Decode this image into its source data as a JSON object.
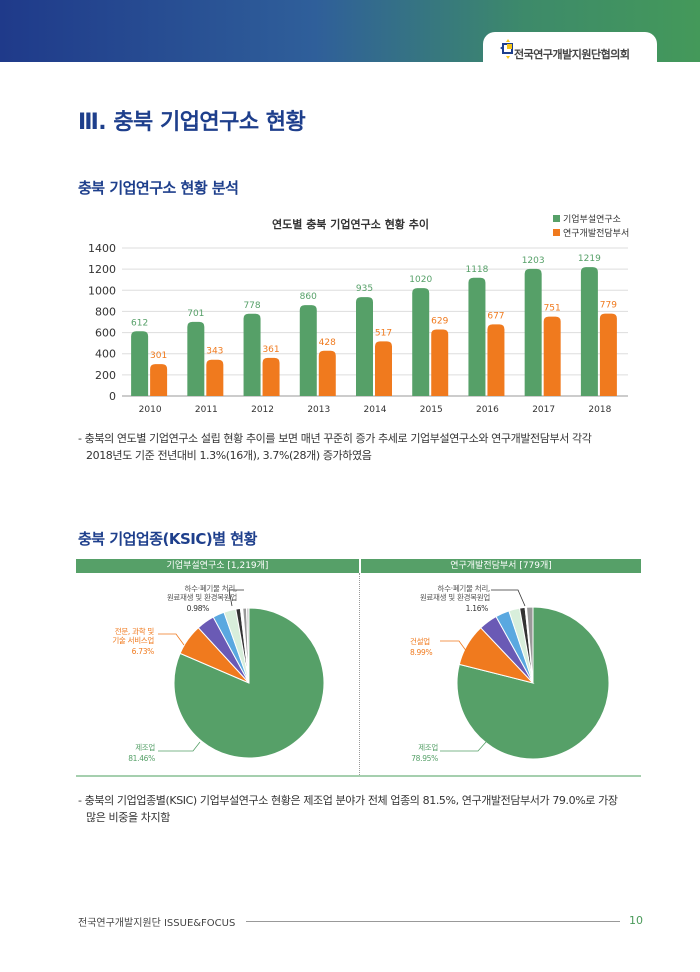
{
  "header": {
    "org_name": "전국연구개발지원단협의회",
    "logo_icon": "association-logo"
  },
  "page_title": "Ⅲ. 충북 기업연구소 현황",
  "section1": {
    "title": "충북 기업연구소 현황 분석",
    "note": "- 충북의 연도별 기업연구소 설립 현황 추이를 보면 매년 꾸준히 증가 추세로 기업부설연구소와 연구개발전담부서 각각",
    "note2": "2018년도 기준 전년대비 1.3%(16개), 3.7%(28개) 증가하였음"
  },
  "section2": {
    "title": "충북 기업업종(KSIC)별 현황",
    "note": "- 충북의 기업업종별(KSIC) 기업부설연구소 현황은 제조업 분야가 전체 업종의 81.5%, 연구개발전담부서가 79.0%로 가장",
    "note2": "많은 비중을 차지함"
  },
  "chart_data": [
    {
      "type": "bar",
      "title": "연도별 충북 기업연구소 현황 추이",
      "categories": [
        "2010",
        "2011",
        "2012",
        "2013",
        "2014",
        "2015",
        "2016",
        "2017",
        "2018"
      ],
      "series": [
        {
          "name": "기업부설연구소",
          "color": "#56a068",
          "values": [
            612,
            701,
            778,
            860,
            935,
            1020,
            1118,
            1203,
            1219
          ]
        },
        {
          "name": "연구개발전담부서",
          "color": "#f07a1e",
          "values": [
            301,
            343,
            361,
            428,
            517,
            629,
            677,
            751,
            779
          ]
        }
      ],
      "ylim": [
        0,
        1400
      ],
      "yticks": [
        "0",
        "200",
        "400",
        "600",
        "800",
        "1000",
        "1200",
        "1400"
      ],
      "grid": true,
      "legend": "top-right"
    },
    {
      "type": "pie",
      "title": "기업부설연구소 [1,219개]",
      "slices": [
        {
          "label": "제조업",
          "value": 81.46,
          "color": "#56a068"
        },
        {
          "label": "전문, 과학 및 기술 서비스업",
          "value": 6.73,
          "color": "#f07a1e"
        },
        {
          "value": 3.9,
          "color": "#6a5ab5"
        },
        {
          "value": 2.5,
          "color": "#5aa8e0"
        },
        {
          "value": 2.6,
          "color": "#d8eedb"
        },
        {
          "label": "하수·폐기물 처리, 원료재생 및 환경복원업",
          "value": 0.98,
          "color": "#333333"
        },
        {
          "value": 0.5,
          "color": "#ffffff"
        },
        {
          "value": 0.8,
          "color": "#999999"
        },
        {
          "value": 0.53,
          "color": "#cccccc"
        }
      ],
      "labels": {
        "manufacturing": "제조업",
        "manufacturing_pct": "81.46%",
        "service_1": "전문, 과학 및",
        "service_2": "기술 서비스업",
        "service_pct": "6.73%",
        "waste_1": "하수·폐기물 처리,",
        "waste_2": "원료재생 및 환경복원업",
        "waste_pct": "0.98%"
      }
    },
    {
      "type": "pie",
      "title": "연구개발전담부서 [779개]",
      "slices": [
        {
          "label": "제조업",
          "value": 78.95,
          "color": "#56a068"
        },
        {
          "label": "건설업",
          "value": 8.99,
          "color": "#f07a1e"
        },
        {
          "value": 3.98,
          "color": "#6a5ab5"
        },
        {
          "value": 2.95,
          "color": "#5aa8e0"
        },
        {
          "value": 2.31,
          "color": "#d8eedb"
        },
        {
          "label": "하수·폐기물 처리, 원료재생 및 환경복원업",
          "value": 1.16,
          "color": "#333333"
        },
        {
          "value": 0.3,
          "color": "#ffffff"
        },
        {
          "value": 1.36,
          "color": "#999999"
        }
      ],
      "labels": {
        "manufacturing": "제조업",
        "manufacturing_pct": "78.95%",
        "construction": "건설업",
        "construction_pct": "8.99%",
        "waste_1": "하수·폐기물 처리,",
        "waste_2": "원료재생 및 환경복원업",
        "waste_pct": "1.16%"
      }
    }
  ],
  "footer": {
    "text": "전국연구개발지원단 ISSUE&FOCUS",
    "page": "10"
  }
}
